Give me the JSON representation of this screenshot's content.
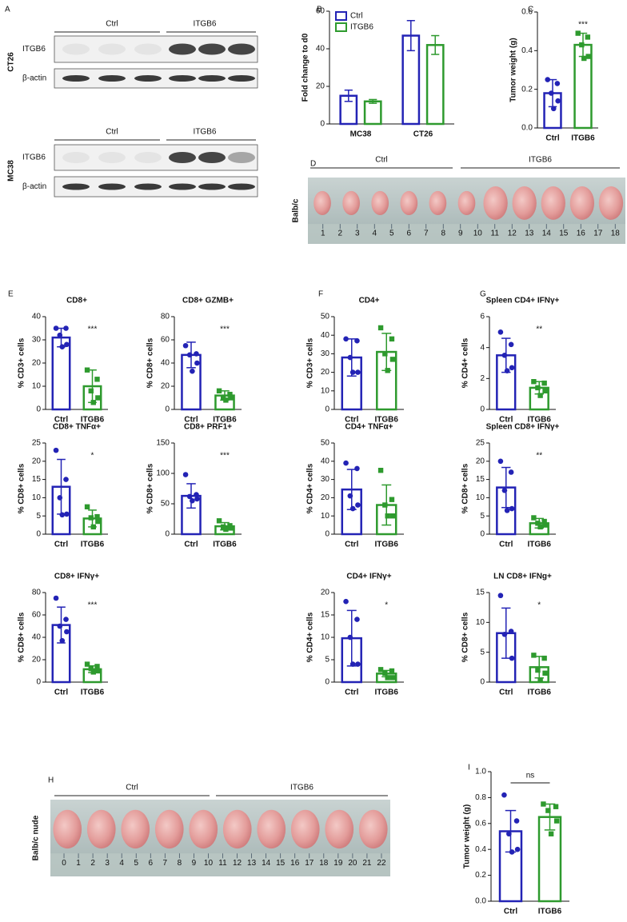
{
  "panel_a": {
    "label": "A",
    "blots": [
      {
        "cell_line": "CT26",
        "groups": [
          "Ctrl",
          "ITGB6"
        ],
        "rows": [
          "ITGB6",
          "β-actin"
        ]
      },
      {
        "cell_line": "MC38",
        "groups": [
          "Ctrl",
          "ITGB6"
        ],
        "rows": [
          "ITGB6",
          "β-actin"
        ]
      }
    ]
  },
  "panel_d": {
    "label": "D",
    "mouse": "Balb/c",
    "groups": [
      "Ctrl",
      "ITGB6"
    ],
    "ruler": [
      1,
      2,
      3,
      4,
      5,
      6,
      7,
      8,
      9,
      10,
      11,
      12,
      13,
      14,
      15,
      16,
      17,
      18
    ]
  },
  "panel_h": {
    "label": "H",
    "mouse": "Balb/c nude",
    "groups": [
      "Ctrl",
      "ITGB6"
    ],
    "ruler": [
      0,
      1,
      2,
      3,
      4,
      5,
      6,
      7,
      8,
      9,
      10,
      11,
      12,
      13,
      14,
      15,
      16,
      17,
      18,
      19,
      20,
      21,
      22
    ]
  },
  "chart_data": [
    {
      "type": "bar",
      "panel": "B",
      "y_label": "Fold change to d0",
      "categories": [
        "MC38",
        "CT26"
      ],
      "series": [
        {
          "name": "Ctrl",
          "color": "#2323b5",
          "values": [
            15,
            47
          ],
          "errors": [
            3,
            8
          ]
        },
        {
          "name": "ITGB6",
          "color": "#2e9a2e",
          "values": [
            12,
            42
          ],
          "errors": [
            1,
            5
          ]
        }
      ],
      "legend": "upper-left",
      "ylim": [
        0,
        60
      ],
      "yticks": [
        0,
        20,
        40,
        60
      ]
    },
    {
      "type": "bar",
      "panel": "C",
      "y_label": "Tumor weight (g)",
      "categories": [
        "Ctrl",
        "ITGB6"
      ],
      "colors": [
        "#2323b5",
        "#2e9a2e"
      ],
      "values": [
        0.18,
        0.43
      ],
      "errors": [
        0.07,
        0.06
      ],
      "points": [
        [
          0.25,
          0.23,
          0.18,
          0.14,
          0.1
        ],
        [
          0.49,
          0.47,
          0.43,
          0.37,
          0.36
        ]
      ],
      "significance": "***",
      "ylim": [
        0,
        0.6
      ],
      "yticks": [
        {
          "value": 0,
          "label": "0.0"
        },
        0.2,
        0.4,
        0.6
      ]
    },
    {
      "type": "bar",
      "panel": "E",
      "title": "CD8+",
      "y_label": "% CD3+ cells",
      "categories": [
        "Ctrl",
        "ITGB6"
      ],
      "colors": [
        "#2323b5",
        "#2e9a2e"
      ],
      "values": [
        31,
        10
      ],
      "errors": [
        4,
        7
      ],
      "points": [
        [
          35,
          35,
          32,
          28,
          27
        ],
        [
          17,
          13,
          8,
          5,
          3
        ]
      ],
      "significance": "***",
      "ylim": [
        0,
        40
      ],
      "yticks": [
        0,
        10,
        20,
        30,
        40
      ]
    },
    {
      "type": "bar",
      "title": "CD8+ GZMB+",
      "y_label": "% CD8+ cells",
      "categories": [
        "Ctrl",
        "ITGB6"
      ],
      "colors": [
        "#2323b5",
        "#2e9a2e"
      ],
      "values": [
        47,
        12
      ],
      "errors": [
        11,
        4
      ],
      "points": [
        [
          55,
          48,
          47,
          40,
          33
        ],
        [
          16,
          13,
          10,
          10,
          8
        ]
      ],
      "significance": "***",
      "ylim": [
        0,
        80
      ],
      "yticks": [
        0,
        20,
        40,
        60,
        80
      ]
    },
    {
      "type": "bar",
      "panel": "F",
      "title": "CD4+",
      "y_label": "% CD3+ cells",
      "categories": [
        "Ctrl",
        "ITGB6"
      ],
      "colors": [
        "#2323b5",
        "#2e9a2e"
      ],
      "values": [
        28,
        31
      ],
      "errors": [
        10,
        10
      ],
      "points": [
        [
          38,
          37,
          28,
          20,
          20
        ],
        [
          44,
          38,
          30,
          27,
          21
        ]
      ],
      "ylim": [
        0,
        50
      ],
      "yticks": [
        0,
        10,
        20,
        30,
        40,
        50
      ]
    },
    {
      "type": "bar",
      "panel": "G",
      "title": "Spleen CD4+ IFNγ+",
      "y_label": "% CD4+ cells",
      "categories": [
        "Ctrl",
        "ITGB6"
      ],
      "colors": [
        "#2323b5",
        "#2e9a2e"
      ],
      "values": [
        3.5,
        1.4
      ],
      "errors": [
        1.1,
        0.4
      ],
      "points": [
        [
          5.0,
          4.2,
          3.5,
          2.7,
          2.5
        ],
        [
          1.8,
          1.7,
          1.4,
          1.2,
          0.9
        ]
      ],
      "significance": "**",
      "ylim": [
        0,
        6
      ],
      "yticks": [
        0,
        2,
        4,
        6
      ]
    },
    {
      "type": "bar",
      "title": "CD8+ TNFα+",
      "y_label": "% CD8+ cells",
      "categories": [
        "Ctrl",
        "ITGB6"
      ],
      "colors": [
        "#2323b5",
        "#2e9a2e"
      ],
      "values": [
        13,
        4.3
      ],
      "errors": [
        7.5,
        2.3
      ],
      "points": [
        [
          23,
          15,
          10,
          5.5,
          5.3
        ],
        [
          7.5,
          4.8,
          4.5,
          3.5,
          2
        ]
      ],
      "significance": "*",
      "ylim": [
        0,
        25
      ],
      "yticks": [
        0,
        5,
        10,
        15,
        20,
        25
      ]
    },
    {
      "type": "bar",
      "title": "CD8+ PRF1+",
      "y_label": "% CD8+ cells",
      "categories": [
        "Ctrl",
        "ITGB6"
      ],
      "colors": [
        "#2323b5",
        "#2e9a2e"
      ],
      "values": [
        63,
        13
      ],
      "errors": [
        20,
        6
      ],
      "points": [
        [
          98,
          65,
          62,
          58,
          55
        ],
        [
          22,
          14,
          12,
          10,
          8
        ]
      ],
      "significance": "***",
      "ylim": [
        0,
        150
      ],
      "yticks": [
        0,
        50,
        100,
        150
      ]
    },
    {
      "type": "bar",
      "title": "CD4+ TNFα+",
      "y_label": "% CD4+ cells",
      "categories": [
        "Ctrl",
        "ITGB6"
      ],
      "colors": [
        "#2323b5",
        "#2e9a2e"
      ],
      "values": [
        24.5,
        16
      ],
      "errors": [
        11,
        11
      ],
      "points": [
        [
          39,
          36,
          21,
          16,
          14
        ],
        [
          35,
          19,
          16,
          10,
          10
        ]
      ],
      "ylim": [
        0,
        50
      ],
      "yticks": [
        0,
        10,
        20,
        30,
        40,
        50
      ]
    },
    {
      "type": "bar",
      "title": "Spleen CD8+ IFNγ+",
      "y_label": "% CD8+ cells",
      "categories": [
        "Ctrl",
        "ITGB6"
      ],
      "colors": [
        "#2323b5",
        "#2e9a2e"
      ],
      "values": [
        12.8,
        3
      ],
      "errors": [
        5.5,
        1.3
      ],
      "points": [
        [
          20,
          17,
          12,
          7,
          6.5
        ],
        [
          4.5,
          3.5,
          3,
          2.5,
          2
        ]
      ],
      "significance": "**",
      "ylim": [
        0,
        25
      ],
      "yticks": [
        0,
        5,
        10,
        15,
        20,
        25
      ]
    },
    {
      "type": "bar",
      "title": "CD8+ IFNγ+",
      "y_label": "% CD8+ cells",
      "categories": [
        "Ctrl",
        "ITGB6"
      ],
      "colors": [
        "#2323b5",
        "#2e9a2e"
      ],
      "values": [
        51,
        11.5
      ],
      "errors": [
        16,
        3
      ],
      "points": [
        [
          75,
          56,
          50,
          45,
          37
        ],
        [
          16,
          14,
          12,
          10,
          9
        ]
      ],
      "significance": "***",
      "ylim": [
        0,
        80
      ],
      "yticks": [
        0,
        20,
        40,
        60,
        80
      ]
    },
    {
      "type": "bar",
      "title": "CD4+ IFNγ+",
      "y_label": "% CD4+ cells",
      "categories": [
        "Ctrl",
        "ITGB6"
      ],
      "colors": [
        "#2323b5",
        "#2e9a2e"
      ],
      "values": [
        9.8,
        1.9
      ],
      "errors": [
        6.2,
        0.7
      ],
      "points": [
        [
          18,
          14,
          10,
          4,
          4
        ],
        [
          2.8,
          2.5,
          2,
          1,
          1
        ]
      ],
      "significance": "*",
      "ylim": [
        0,
        20
      ],
      "yticks": [
        0,
        5,
        10,
        15,
        20
      ]
    },
    {
      "type": "bar",
      "title": "LN CD8+ IFNg+",
      "y_label": "% CD8+ cells",
      "categories": [
        "Ctrl",
        "ITGB6"
      ],
      "colors": [
        "#2323b5",
        "#2e9a2e"
      ],
      "values": [
        8.2,
        2.5
      ],
      "errors": [
        4.2,
        1.8
      ],
      "points": [
        [
          14.5,
          8.5,
          8,
          4
        ],
        [
          4.5,
          4,
          2,
          1.5,
          0.3
        ]
      ],
      "significance": "*",
      "ylim": [
        0,
        15
      ],
      "yticks": [
        0,
        5,
        10,
        15
      ]
    },
    {
      "type": "bar",
      "panel": "I",
      "y_label": "Tumor weight (g)",
      "categories": [
        "Ctrl",
        "ITGB6"
      ],
      "colors": [
        "#2323b5",
        "#2e9a2e"
      ],
      "values": [
        0.54,
        0.65
      ],
      "errors": [
        0.16,
        0.1
      ],
      "points": [
        [
          0.82,
          0.62,
          0.52,
          0.4,
          0.38
        ],
        [
          0.75,
          0.73,
          0.7,
          0.62,
          0.52
        ]
      ],
      "significance": "ns",
      "significance_bracket": true,
      "ylim": [
        0,
        1
      ],
      "yticks": [
        {
          "value": 0,
          "label": "0.0"
        },
        0.2,
        0.4,
        0.6,
        0.8,
        {
          "value": 1,
          "label": "1.0"
        }
      ]
    }
  ]
}
